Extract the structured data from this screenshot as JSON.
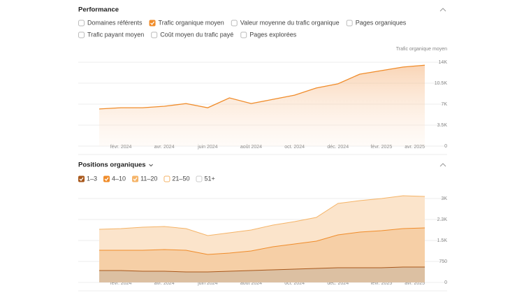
{
  "chart_data": [
    {
      "type": "area",
      "title": "Performance",
      "options": [
        {
          "label": "Domaines référents",
          "checked": false
        },
        {
          "label": "Trafic organique moyen",
          "checked": true
        },
        {
          "label": "Valeur moyenne du trafic organique",
          "checked": false
        },
        {
          "label": "Pages organiques",
          "checked": false
        },
        {
          "label": "Trafic payant moyen",
          "checked": false
        },
        {
          "label": "Coût moyen du trafic payé",
          "checked": false
        },
        {
          "label": "Pages explorées",
          "checked": false
        }
      ],
      "y_axis_label": "Trafic organique moyen",
      "categories": [
        null,
        "févr. 2024",
        null,
        "avr. 2024",
        null,
        "juin 2024",
        null,
        "août 2024",
        null,
        "oct. 2024",
        null,
        "déc. 2024",
        null,
        "févr. 2025",
        null,
        "avr. 2025"
      ],
      "series": [
        {
          "name": "Trafic organique moyen",
          "color": "#f08c2a",
          "values": [
            6200,
            6400,
            6400,
            6650,
            7100,
            6400,
            8050,
            7100,
            7800,
            8500,
            9700,
            10400,
            12000,
            12600,
            13200,
            13500
          ]
        }
      ],
      "ylim": [
        0,
        14000
      ],
      "yticks": [
        0,
        {
          "value": 3500,
          "label": "3.5K"
        },
        {
          "value": 7000,
          "label": "7K"
        },
        {
          "value": 10500,
          "label": "10.5K"
        },
        {
          "value": 14000,
          "label": "14K"
        }
      ],
      "grid": true
    },
    {
      "type": "stacked-area",
      "title": "Positions organiques",
      "categories": [
        null,
        "févr. 2024",
        null,
        "avr. 2024",
        null,
        "juin 2024",
        null,
        "août 2024",
        null,
        "oct. 2024",
        null,
        "déc. 2024",
        null,
        "févr. 2025",
        null,
        "avr. 2025"
      ],
      "series": [
        {
          "name": "1–3",
          "checked": true,
          "color": "#a8581c",
          "fill": "#dcc0a2",
          "values": [
            425,
            425,
            400,
            400,
            375,
            375,
            400,
            425,
            450,
            475,
            500,
            525,
            525,
            525,
            550,
            550
          ]
        },
        {
          "name": "4–10",
          "checked": true,
          "color": "#f08c2a",
          "fill": "#f6cfa6",
          "values": [
            725,
            725,
            750,
            775,
            775,
            625,
            650,
            700,
            825,
            900,
            975,
            1175,
            1275,
            1325,
            1375,
            1400
          ]
        },
        {
          "name": "11–20",
          "checked": true,
          "color": "#f5b468",
          "fill": "#fbe4cb",
          "values": [
            750,
            775,
            825,
            825,
            775,
            675,
            725,
            750,
            775,
            800,
            850,
            1125,
            1125,
            1150,
            1175,
            1125
          ]
        },
        {
          "name": "21–50",
          "checked": false,
          "color": "#f5b468"
        },
        {
          "name": "51+",
          "checked": false,
          "color": "#cccccc"
        }
      ],
      "ylim": [
        0,
        3000
      ],
      "yticks": [
        0,
        750,
        {
          "value": 1500,
          "label": "1.5K"
        },
        {
          "value": 2250,
          "label": "2.3K"
        },
        {
          "value": 3000,
          "label": "3K"
        }
      ],
      "grid": true
    }
  ]
}
